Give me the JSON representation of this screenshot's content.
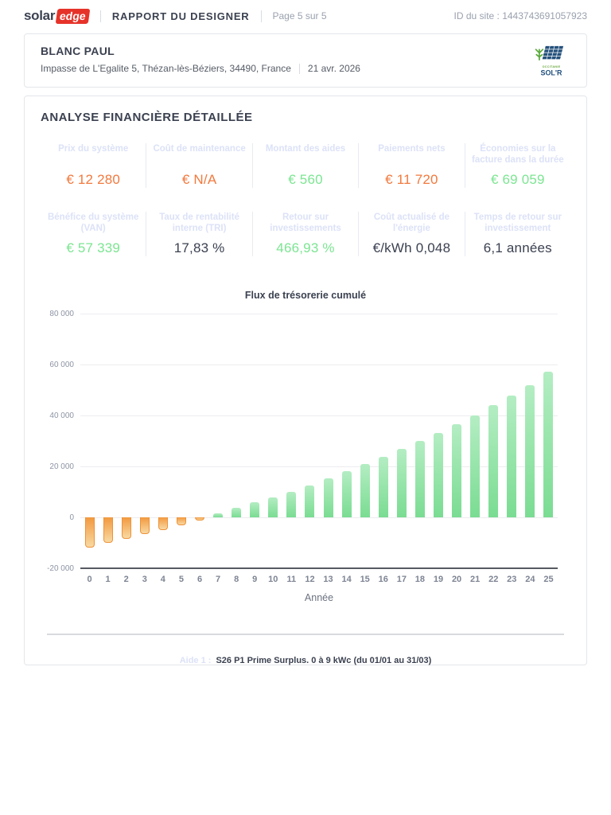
{
  "header": {
    "brand_left": "solar",
    "brand_right": "edge",
    "report_title": "RAPPORT DU DESIGNER",
    "page_label": "Page 5 sur 5",
    "site_id": "ID du site : 1443743691057923"
  },
  "client": {
    "name": "BLANC PAUL",
    "address": "Impasse de L'Egalite 5, Thézan-lès-Béziers, 34490, France",
    "date": "21 avr. 2026",
    "partner_logo": {
      "line1": "OCCITANIE",
      "line2": "SOL'R"
    }
  },
  "section_title": "ANALYSE FINANCIÈRE DÉTAILLÉE",
  "metrics": [
    {
      "label": "Prix du système",
      "value": "€ 12 280",
      "color": "orange"
    },
    {
      "label": "Coût de maintenance",
      "value": "€ N/A",
      "color": "orange"
    },
    {
      "label": "Montant des aides",
      "value": "€ 560",
      "color": "green"
    },
    {
      "label": "Paiements nets",
      "value": "€ 11 720",
      "color": "orange"
    },
    {
      "label": "Économies sur la facture dans la durée",
      "value": "€ 69 059",
      "color": "green"
    },
    {
      "label": "Bénéfice du système (VAN)",
      "value": "€ 57 339",
      "color": "green"
    },
    {
      "label": "Taux de rentabilité interne (TRI)",
      "value": "17,83 %",
      "color": "dark"
    },
    {
      "label": "Retour sur investissements",
      "value": "466,93 %",
      "color": "green"
    },
    {
      "label": "Coût actualisé de l'énergie",
      "value": "€/kWh 0,048",
      "color": "dark"
    },
    {
      "label": "Temps de retour sur investissement",
      "value": "6,1 années",
      "color": "dark"
    }
  ],
  "chart_data": {
    "type": "bar",
    "title": "Flux de trésorerie cumulé",
    "xlabel": "Année",
    "ylabel": "",
    "categories": [
      0,
      1,
      2,
      3,
      4,
      5,
      6,
      7,
      8,
      9,
      10,
      11,
      12,
      13,
      14,
      15,
      16,
      17,
      18,
      19,
      20,
      21,
      22,
      23,
      24,
      25
    ],
    "values": [
      -11720,
      -9950,
      -8300,
      -6600,
      -5100,
      -3200,
      -1200,
      1550,
      3650,
      5850,
      7800,
      10100,
      12500,
      15400,
      18200,
      21050,
      23900,
      26900,
      30000,
      33200,
      36600,
      40100,
      44100,
      47950,
      51900,
      57339
    ],
    "ylim": [
      -20000,
      80000
    ],
    "yticks": [
      -20000,
      0,
      20000,
      40000,
      60000,
      80000
    ],
    "ytick_labels": [
      "-20 000",
      "0",
      "20 000",
      "40 000",
      "60 000",
      "80 000"
    ],
    "grid": true,
    "legend": false,
    "positive_color_top": "#b4edc3",
    "positive_color_bottom": "#7adc92",
    "negative_color_top": "#f2993f",
    "negative_color_bottom": "#f8d9a2",
    "negative_border": "#ee9238"
  },
  "footnote": {
    "prefix": "Aide 1 :",
    "text": "S26 P1 Prime Surplus. 0 à 9 kWc (du 01/01 au 31/03)"
  },
  "colors": {
    "accent_orange": "#f2793d",
    "accent_green": "#7ce592",
    "brand_red": "#e6332a",
    "label_lavender": "#dce2f7",
    "text_dark": "#3b4150"
  }
}
